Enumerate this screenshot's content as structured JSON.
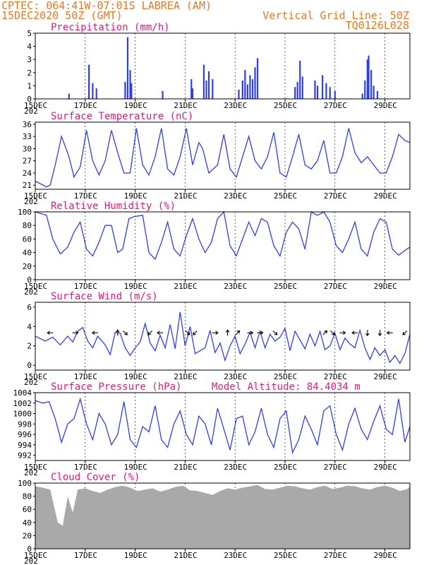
{
  "header": {
    "line1_left": "CPTEC:  064:41W-07:01S  LABREA (AM)",
    "line2_left": "15DEC2020 50Z (GMT)",
    "line1_right": "Vertical Grid Line: 50Z",
    "line2_right": "TQ0126L028"
  },
  "colors": {
    "header": "#e8781e",
    "title": "#e8177d",
    "series": "#2f3fe6",
    "cloud": "#a9a9a9",
    "axis": "#000000"
  },
  "x_axis": {
    "labels": [
      "15DEC",
      "17DEC",
      "19DEC",
      "21DEC",
      "23DEC",
      "25DEC",
      "27DEC",
      "29DEC"
    ],
    "label_days": [
      0,
      2,
      4,
      6,
      8,
      10,
      12,
      14
    ],
    "range_days": [
      0,
      15
    ],
    "year_fragment": "202"
  },
  "chart_data": [
    {
      "id": "precip",
      "type": "bar",
      "title": "Precipitation (mm/h)",
      "ylim": [
        0,
        5
      ],
      "yticks": [
        "0",
        "1",
        "2",
        "3",
        "4",
        "5"
      ],
      "spikes": [
        [
          1.35,
          0.4
        ],
        [
          2.15,
          2.6
        ],
        [
          2.3,
          1.2
        ],
        [
          2.45,
          0.8
        ],
        [
          3.6,
          1.3
        ],
        [
          3.7,
          4.7
        ],
        [
          3.8,
          2.2
        ],
        [
          3.85,
          1.2
        ],
        [
          5.1,
          0.6
        ],
        [
          6.25,
          1.5
        ],
        [
          6.3,
          0.8
        ],
        [
          6.75,
          2.6
        ],
        [
          6.85,
          1.4
        ],
        [
          6.95,
          2.1
        ],
        [
          7.1,
          1.5
        ],
        [
          8.15,
          0.7
        ],
        [
          8.3,
          1.4
        ],
        [
          8.4,
          2.2
        ],
        [
          8.5,
          1.1
        ],
        [
          8.6,
          1.8
        ],
        [
          8.7,
          1.5
        ],
        [
          8.8,
          2.4
        ],
        [
          8.9,
          3.1
        ],
        [
          10.4,
          0.9
        ],
        [
          10.5,
          1.3
        ],
        [
          10.6,
          2.9
        ],
        [
          10.7,
          1.7
        ],
        [
          11.2,
          1.4
        ],
        [
          11.3,
          1.0
        ],
        [
          11.5,
          1.8
        ],
        [
          11.65,
          1.2
        ],
        [
          11.8,
          0.9
        ],
        [
          12.0,
          0.6
        ],
        [
          13.1,
          0.4
        ],
        [
          13.2,
          1.4
        ],
        [
          13.3,
          3.0
        ],
        [
          13.35,
          3.3
        ],
        [
          13.45,
          2.2
        ],
        [
          13.55,
          1.0
        ],
        [
          13.7,
          0.6
        ]
      ]
    },
    {
      "id": "temp",
      "type": "line",
      "title": "Surface Temperature (nC)",
      "ylim": [
        20,
        36.5
      ],
      "yticks": [
        "21",
        "24",
        "27",
        "30",
        "33",
        "36"
      ],
      "x": [
        0,
        0.45,
        0.6,
        0.8,
        1.05,
        1.35,
        1.55,
        1.8,
        2.05,
        2.3,
        2.55,
        2.8,
        3.05,
        3.3,
        3.55,
        3.8,
        4.05,
        4.3,
        4.55,
        4.8,
        5.05,
        5.3,
        5.55,
        5.8,
        6.05,
        6.3,
        6.55,
        6.7,
        6.95,
        7.3,
        7.55,
        7.8,
        8.05,
        8.3,
        8.55,
        8.8,
        9.05,
        9.3,
        9.55,
        9.8,
        10.05,
        10.3,
        10.55,
        10.8,
        11.05,
        11.3,
        11.55,
        11.8,
        12.05,
        12.3,
        12.55,
        12.8,
        13.05,
        13.3,
        13.55,
        13.8,
        14.05,
        14.3,
        14.55,
        14.8,
        15.0
      ],
      "y": [
        22,
        20.6,
        21,
        26,
        33,
        28,
        23,
        25.5,
        34.5,
        27,
        23.5,
        27,
        34.5,
        29,
        24,
        24,
        35,
        26,
        23.5,
        28,
        35,
        25,
        23.5,
        28,
        35,
        26,
        31.5,
        30,
        24,
        26,
        33.5,
        25,
        23,
        28,
        33,
        27,
        25,
        28,
        34,
        24,
        23,
        28,
        33.5,
        26,
        25,
        27,
        32,
        24,
        24,
        28,
        35,
        29,
        26.5,
        28,
        26,
        24,
        24,
        28,
        33.5,
        32,
        31.5
      ]
    },
    {
      "id": "rh",
      "type": "line",
      "title": "Relative Humidity (%)",
      "ylim": [
        0,
        100
      ],
      "yticks": [
        "0",
        "20",
        "40",
        "60",
        "80",
        "100"
      ],
      "x": [
        0,
        0.45,
        0.7,
        1.0,
        1.3,
        1.55,
        1.8,
        2.05,
        2.3,
        2.55,
        2.8,
        3.05,
        3.3,
        3.5,
        3.75,
        3.95,
        4.3,
        4.55,
        4.8,
        5.05,
        5.3,
        5.55,
        5.8,
        6.05,
        6.3,
        6.55,
        6.8,
        7.05,
        7.3,
        7.55,
        7.8,
        8.05,
        8.3,
        8.55,
        8.8,
        9.05,
        9.3,
        9.55,
        9.8,
        10.05,
        10.3,
        10.55,
        10.8,
        11.05,
        11.3,
        11.55,
        11.8,
        12.05,
        12.3,
        12.55,
        12.8,
        13.05,
        13.3,
        13.55,
        13.8,
        14.05,
        14.3,
        14.55,
        14.8,
        15.0
      ],
      "y": [
        100,
        95,
        60,
        38,
        48,
        70,
        85,
        45,
        35,
        55,
        80,
        80,
        40,
        45,
        90,
        93,
        95,
        40,
        30,
        55,
        85,
        45,
        35,
        65,
        90,
        60,
        40,
        55,
        90,
        100,
        50,
        35,
        60,
        85,
        65,
        90,
        85,
        50,
        35,
        70,
        85,
        75,
        45,
        100,
        95,
        100,
        85,
        50,
        40,
        60,
        85,
        45,
        35,
        70,
        90,
        85,
        45,
        36,
        43,
        48
      ]
    },
    {
      "id": "wind",
      "type": "line",
      "title": "Surface Wind (m/s)",
      "ylim": [
        -0.5,
        6.5
      ],
      "yticks": [
        "0",
        "2",
        "4",
        "6"
      ],
      "x": [
        0,
        0.4,
        0.7,
        1.0,
        1.3,
        1.5,
        1.7,
        1.9,
        2.1,
        2.3,
        2.5,
        2.8,
        3.0,
        3.2,
        3.4,
        3.6,
        3.8,
        4.0,
        4.2,
        4.4,
        4.6,
        4.8,
        5.0,
        5.2,
        5.4,
        5.6,
        5.8,
        6.0,
        6.2,
        6.4,
        6.6,
        6.8,
        7.0,
        7.2,
        7.4,
        7.6,
        7.8,
        8.0,
        8.2,
        8.4,
        8.6,
        8.8,
        9.0,
        9.2,
        9.4,
        9.6,
        9.8,
        10.0,
        10.2,
        10.4,
        10.6,
        10.8,
        11.0,
        11.2,
        11.4,
        11.6,
        11.8,
        12.0,
        12.2,
        12.4,
        12.6,
        12.8,
        13.0,
        13.2,
        13.4,
        13.6,
        13.8,
        14.0,
        14.2,
        14.4,
        14.6,
        14.8,
        15.0
      ],
      "y": [
        3.0,
        2.5,
        2.9,
        2.1,
        3.0,
        2.4,
        3.5,
        3.9,
        2.5,
        1.8,
        3.0,
        2.1,
        1.1,
        3.4,
        3.3,
        1.8,
        1.0,
        1.8,
        2.4,
        4.3,
        2.3,
        1.5,
        3.1,
        1.8,
        4.2,
        1.7,
        5.5,
        2.0,
        4.0,
        1.2,
        1.5,
        1.8,
        3.6,
        1.3,
        2.3,
        0.5,
        2.0,
        3.0,
        1.2,
        2.2,
        3.4,
        1.8,
        3.5,
        1.8,
        3.2,
        2.5,
        2.9,
        3.8,
        1.5,
        3.5,
        2.6,
        1.7,
        3.2,
        2.0,
        3.5,
        1.6,
        2.0,
        3.3,
        1.6,
        2.8,
        2.2,
        1.8,
        3.6,
        1.8,
        0.6,
        1.8,
        1.0,
        1.6,
        0.3,
        1.0,
        0.2,
        1.2,
        3.2
      ]
    },
    {
      "id": "pressure",
      "type": "line",
      "title": "Surface Pressure (hPa)",
      "annotation": "Model Altitude: 84.4034 m",
      "ylim": [
        991,
        1004
      ],
      "yticks": [
        "992",
        "994",
        "996",
        "998",
        "1000",
        "1002",
        "1004"
      ],
      "x": [
        0,
        0.3,
        0.55,
        0.8,
        1.05,
        1.3,
        1.55,
        1.8,
        2.05,
        2.3,
        2.55,
        2.8,
        3.05,
        3.3,
        3.55,
        3.8,
        4.05,
        4.3,
        4.55,
        4.8,
        5.05,
        5.3,
        5.55,
        5.8,
        6.05,
        6.3,
        6.55,
        6.8,
        7.05,
        7.3,
        7.55,
        7.8,
        8.05,
        8.3,
        8.55,
        8.8,
        9.05,
        9.3,
        9.55,
        9.8,
        10.05,
        10.3,
        10.55,
        10.8,
        11.05,
        11.3,
        11.55,
        11.8,
        12.05,
        12.3,
        12.55,
        12.8,
        13.05,
        13.3,
        13.55,
        13.8,
        14.05,
        14.3,
        14.55,
        14.8,
        15.0
      ],
      "y": [
        1002.5,
        1002,
        1002.3,
        999,
        994.5,
        998,
        999,
        1002.8,
        998,
        995,
        1000,
        998,
        994,
        996,
        1002.3,
        995,
        993.5,
        997.5,
        996.5,
        1001.5,
        995,
        993.5,
        998,
        1000.5,
        996,
        994,
        999.5,
        998,
        994,
        1001,
        997,
        993,
        999,
        999.5,
        994,
        996.5,
        1001,
        996,
        993.5,
        999,
        1000.5,
        992.5,
        995,
        999.5,
        997,
        994,
        1000.5,
        1001.5,
        996,
        993,
        998,
        1001,
        997,
        995,
        998.5,
        1001.5,
        997,
        996,
        1002.8,
        994.5,
        997.5
      ]
    },
    {
      "id": "cloud",
      "type": "area",
      "title": "Cloud Cover (%)",
      "ylim": [
        0,
        100
      ],
      "yticks": [
        "0",
        "20",
        "40",
        "60",
        "80",
        "100"
      ],
      "x": [
        0,
        0.3,
        0.6,
        0.9,
        1.1,
        1.3,
        1.5,
        1.7,
        2.0,
        2.3,
        2.6,
        2.9,
        3.2,
        3.5,
        3.8,
        4.1,
        4.4,
        4.7,
        5.0,
        5.3,
        5.6,
        5.9,
        6.2,
        6.5,
        6.8,
        7.1,
        7.4,
        7.7,
        8.0,
        8.3,
        8.6,
        8.9,
        9.2,
        9.5,
        9.8,
        10.1,
        10.4,
        10.7,
        11.0,
        11.3,
        11.6,
        11.9,
        12.2,
        12.5,
        12.8,
        13.1,
        13.4,
        13.7,
        14.0,
        14.3,
        14.6,
        14.9,
        15.0
      ],
      "y": [
        95,
        93,
        90,
        40,
        35,
        80,
        55,
        90,
        92,
        88,
        85,
        90,
        94,
        96,
        93,
        88,
        90,
        92,
        87,
        90,
        94,
        96,
        89,
        88,
        85,
        82,
        88,
        92,
        90,
        93,
        95,
        97,
        91,
        90,
        93,
        96,
        95,
        92,
        90,
        94,
        96,
        91,
        93,
        96,
        95,
        92,
        90,
        94,
        96,
        93,
        88,
        91,
        95
      ]
    }
  ],
  "wind_vectors": [
    {
      "day": 0.6,
      "dir": "left"
    },
    {
      "day": 1.6,
      "dir": "right"
    },
    {
      "day": 2.4,
      "dir": "left"
    },
    {
      "day": 3.3,
      "dir": "up"
    },
    {
      "day": 3.6,
      "dir": "down-right"
    },
    {
      "day": 4.6,
      "dir": "down-left"
    },
    {
      "day": 5.0,
      "dir": "left"
    },
    {
      "day": 6.1,
      "dir": "down-right"
    },
    {
      "day": 6.4,
      "dir": "down-left"
    },
    {
      "day": 7.2,
      "dir": "right"
    },
    {
      "day": 7.7,
      "dir": "up"
    },
    {
      "day": 8.1,
      "dir": "up-right"
    },
    {
      "day": 8.6,
      "dir": "right"
    },
    {
      "day": 9.0,
      "dir": "right"
    },
    {
      "day": 9.6,
      "dir": "down-right"
    },
    {
      "day": 11.6,
      "dir": "up-right"
    },
    {
      "day": 11.9,
      "dir": "down-right"
    },
    {
      "day": 12.3,
      "dir": "right"
    },
    {
      "day": 12.8,
      "dir": "left"
    },
    {
      "day": 13.3,
      "dir": "down"
    },
    {
      "day": 13.8,
      "dir": "down"
    },
    {
      "day": 14.2,
      "dir": "left"
    },
    {
      "day": 14.8,
      "dir": "down-left"
    }
  ]
}
